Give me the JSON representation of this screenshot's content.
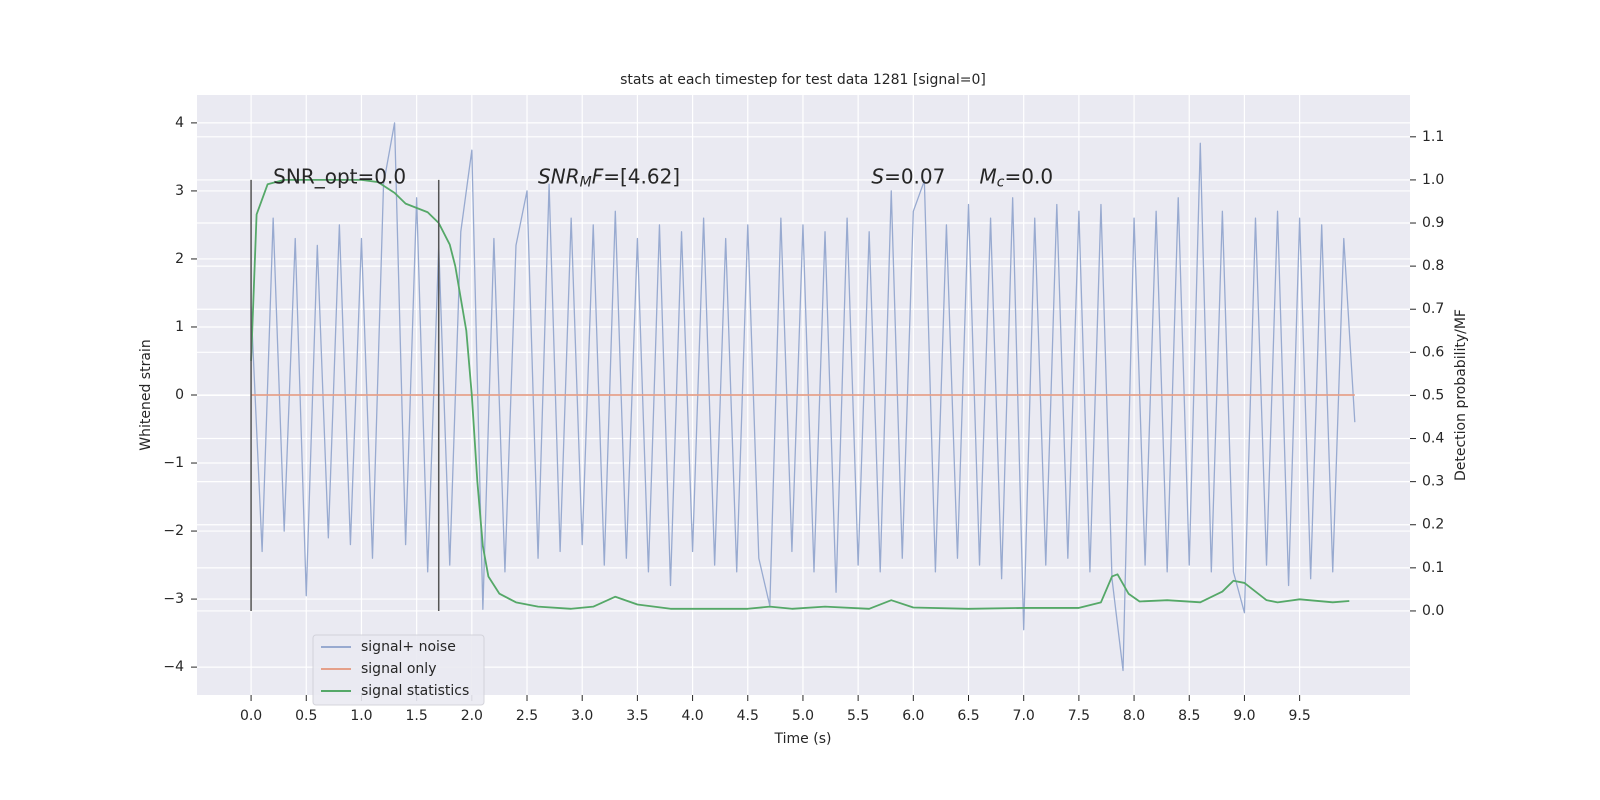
{
  "chart_data": {
    "type": "line",
    "title": "stats at each timestep for test data 1281 [signal=0]",
    "xlabel": "Time (s)",
    "ylabel": "Whitened strain",
    "y2label": "Detection probability/MF",
    "xlim": [
      -0.49,
      10.5
    ],
    "ylim": [
      -4.41,
      4.41
    ],
    "y2lim": [
      -0.195,
      1.197
    ],
    "xticks": [
      {
        "value": 0,
        "label": "0.0"
      },
      0.5,
      {
        "value": 1,
        "label": "1.0"
      },
      1.5,
      {
        "value": 2,
        "label": "2.0"
      },
      2.5,
      {
        "value": 3,
        "label": "3.0"
      },
      3.5,
      {
        "value": 4,
        "label": "4.0"
      },
      4.5,
      {
        "value": 5,
        "label": "5.0"
      },
      5.5,
      {
        "value": 6,
        "label": "6.0"
      },
      6.5,
      {
        "value": 7,
        "label": "7.0"
      },
      7.5,
      {
        "value": 8,
        "label": "8.0"
      },
      8.5,
      {
        "value": 9,
        "label": "9.0"
      },
      9.5
    ],
    "yticks": [
      {
        "value": -4,
        "label": "−4"
      },
      {
        "value": -3,
        "label": "−3"
      },
      {
        "value": -2,
        "label": "−2"
      },
      {
        "value": -1,
        "label": "−1"
      },
      0,
      1,
      2,
      3,
      4
    ],
    "y2ticks": [
      {
        "value": 0,
        "label": "0.0"
      },
      0.1,
      0.2,
      0.3,
      0.4,
      0.5,
      0.6,
      0.7,
      0.8,
      0.9,
      {
        "value": 1,
        "label": "1.0"
      },
      1.1
    ],
    "grid": true,
    "legend": "lower left",
    "vlines": [
      0,
      1.7
    ],
    "vline_range": [
      0,
      1
    ],
    "vline_color": "#555555",
    "series": [
      {
        "name": "signal+ noise",
        "color": "#98aad0",
        "x": [
          0,
          0.1,
          0.2,
          0.3,
          0.4,
          0.5,
          0.6,
          0.7,
          0.8,
          0.9,
          1,
          1.1,
          1.2,
          1.3,
          1.4,
          1.5,
          1.6,
          1.7,
          1.8,
          1.9,
          2,
          2.1,
          2.2,
          2.3,
          2.4,
          2.5,
          2.6,
          2.7,
          2.8,
          2.9,
          3,
          3.1,
          3.2,
          3.3,
          3.4,
          3.5,
          3.6,
          3.7,
          3.8,
          3.9,
          4,
          4.1,
          4.2,
          4.3,
          4.4,
          4.5,
          4.6,
          4.7,
          4.8,
          4.9,
          5,
          5.1,
          5.2,
          5.3,
          5.4,
          5.5,
          5.6,
          5.7,
          5.8,
          5.9,
          6,
          6.1,
          6.2,
          6.3,
          6.4,
          6.5,
          6.6,
          6.7,
          6.8,
          6.9,
          7,
          7.1,
          7.2,
          7.3,
          7.4,
          7.5,
          7.6,
          7.7,
          7.8,
          7.9,
          8,
          8.1,
          8.2,
          8.3,
          8.4,
          8.5,
          8.6,
          8.7,
          8.8,
          8.9,
          9,
          9.1,
          9.2,
          9.3,
          9.4,
          9.5,
          9.6,
          9.7,
          9.8,
          9.9,
          10
        ],
        "values": [
          1.3,
          -2.3,
          2.6,
          -2.0,
          2.3,
          -2.95,
          2.2,
          -2.1,
          2.5,
          -2.2,
          2.3,
          -2.4,
          3.1,
          4.0,
          -2.2,
          2.9,
          -2.6,
          2.2,
          -2.5,
          2.4,
          3.6,
          -3.15,
          2.3,
          -2.6,
          2.2,
          3.0,
          -2.4,
          3.1,
          -2.3,
          2.6,
          -2.2,
          2.5,
          -2.5,
          2.7,
          -2.4,
          2.3,
          -2.6,
          2.5,
          -2.8,
          2.4,
          -2.3,
          2.6,
          -2.5,
          2.3,
          -2.6,
          2.5,
          -2.4,
          -3.1,
          2.6,
          -2.3,
          2.5,
          -2.6,
          2.4,
          -2.9,
          2.6,
          -2.5,
          2.4,
          -2.6,
          3.0,
          -2.4,
          2.7,
          3.15,
          -2.6,
          2.5,
          -2.4,
          2.8,
          -2.5,
          2.6,
          -2.7,
          2.9,
          -3.45,
          2.6,
          -2.5,
          2.8,
          -2.4,
          2.7,
          -2.6,
          2.8,
          -2.7,
          -4.05,
          2.6,
          -2.5,
          2.7,
          -2.6,
          2.9,
          -2.5,
          3.7,
          -2.6,
          2.7,
          -2.6,
          -3.2,
          2.6,
          -2.5,
          2.7,
          -2.8,
          2.6,
          -2.7,
          2.5,
          -2.6,
          2.3,
          -0.4
        ]
      },
      {
        "name": "signal only",
        "color": "#e5a08a",
        "x": [
          0,
          10
        ],
        "values": [
          0,
          0
        ]
      },
      {
        "name": "signal statistics",
        "color": "#55a868",
        "axis": "y2",
        "x": [
          0,
          0.05,
          0.15,
          0.3,
          0.7,
          1.0,
          1.15,
          1.3,
          1.4,
          1.6,
          1.7,
          1.8,
          1.85,
          1.95,
          2.0,
          2.05,
          2.1,
          2.15,
          2.25,
          2.4,
          2.6,
          2.9,
          3.1,
          3.3,
          3.5,
          3.8,
          4.5,
          4.7,
          4.9,
          5.2,
          5.6,
          5.8,
          6.0,
          6.5,
          7.0,
          7.5,
          7.7,
          7.8,
          7.85,
          7.95,
          8.05,
          8.3,
          8.6,
          8.8,
          8.9,
          9.0,
          9.2,
          9.3,
          9.5,
          9.8,
          9.95
        ],
        "values": [
          0.58,
          0.92,
          0.99,
          1.0,
          1.0,
          1.0,
          0.995,
          0.97,
          0.945,
          0.925,
          0.9,
          0.85,
          0.8,
          0.65,
          0.5,
          0.3,
          0.15,
          0.08,
          0.04,
          0.02,
          0.01,
          0.005,
          0.01,
          0.033,
          0.015,
          0.005,
          0.005,
          0.01,
          0.005,
          0.01,
          0.005,
          0.025,
          0.008,
          0.005,
          0.007,
          0.007,
          0.02,
          0.08,
          0.085,
          0.04,
          0.022,
          0.025,
          0.02,
          0.045,
          0.07,
          0.065,
          0.025,
          0.02,
          0.027,
          0.02,
          0.023
        ]
      }
    ],
    "annotations": [
      {
        "x": 0.2,
        "y": 3.2,
        "parts": [
          {
            "t": "SNR_opt=0.0"
          }
        ]
      },
      {
        "x": 2.6,
        "y": 3.2,
        "parts": [
          {
            "t": "SNR",
            "italic": true
          },
          {
            "t": "M",
            "italic": true,
            "sub": true
          },
          {
            "t": "F",
            "italic": true
          },
          {
            "t": "=[4.62]"
          }
        ]
      },
      {
        "x": 5.62,
        "y": 3.2,
        "parts": [
          {
            "t": "S",
            "italic": true
          },
          {
            "t": "=0.07"
          }
        ]
      },
      {
        "x": 6.6,
        "y": 3.2,
        "parts": [
          {
            "t": "M",
            "italic": true
          },
          {
            "t": "c",
            "italic": true,
            "sub": true
          },
          {
            "t": "=0.0"
          }
        ]
      }
    ]
  }
}
